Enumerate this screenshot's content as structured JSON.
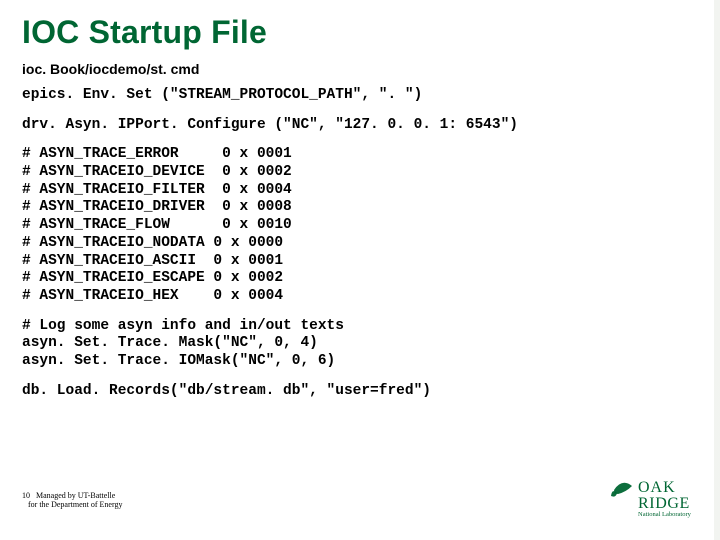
{
  "title": "IOC Startup File",
  "subtitle_path": "ioc. Book/iocdemo/st. cmd",
  "code_lines": [
    "epics. Env. Set (\"STREAM_PROTOCOL_PATH\", \". \")",
    "",
    "drv. Asyn. IPPort. Configure (\"NC\", \"127. 0. 0. 1: 6543\")",
    "",
    "# ASYN_TRACE_ERROR     0 x 0001",
    "# ASYN_TRACEIO_DEVICE  0 x 0002",
    "# ASYN_TRACEIO_FILTER  0 x 0004",
    "# ASYN_TRACEIO_DRIVER  0 x 0008",
    "# ASYN_TRACE_FLOW      0 x 0010",
    "# ASYN_TRACEIO_NODATA 0 x 0000",
    "# ASYN_TRACEIO_ASCII  0 x 0001",
    "# ASYN_TRACEIO_ESCAPE 0 x 0002",
    "# ASYN_TRACEIO_HEX    0 x 0004",
    "",
    "# Log some asyn info and in/out texts",
    "asyn. Set. Trace. Mask(\"NC\", 0, 4)",
    "asyn. Set. Trace. IOMask(\"NC\", 0, 6)",
    "",
    "db. Load. Records(\"db/stream. db\", \"user=fred\")"
  ],
  "footer": {
    "page_number": "10",
    "line1": "Managed by UT-Battelle",
    "line2": "for the Department of Energy"
  },
  "logo": {
    "top_text": "OAK",
    "bottom_text": "RIDGE",
    "sub_text": "National Laboratory",
    "color": "#006633"
  },
  "colors": {
    "accent": "#006633",
    "text": "#000000",
    "background": "#ffffff"
  }
}
